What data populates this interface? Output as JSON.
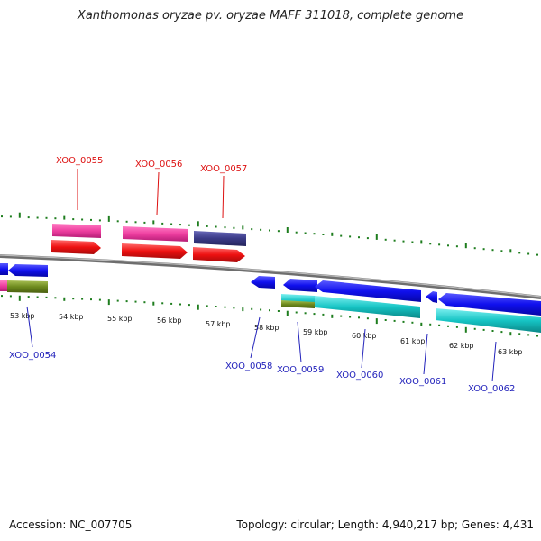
{
  "header": {
    "title": "Xanthomonas oryzae pv. oryzae MAFF 311018, complete genome"
  },
  "footer": {
    "accession": "Accession: NC_007705",
    "stats": "Topology: circular; Length: 4,940,217 bp; Genes: 4,431"
  },
  "scale": {
    "labels": [
      "53 kbp",
      "54 kbp",
      "55 kbp",
      "56 kbp",
      "57 kbp",
      "58 kbp",
      "59 kbp",
      "60 kbp",
      "61 kbp",
      "62 kbp",
      "63 kbp"
    ]
  },
  "genes": {
    "forward_labels": [
      "XOO_0055",
      "XOO_0056",
      "XOO_0057"
    ],
    "reverse_labels": [
      "XOO_0054",
      "XOO_0058",
      "XOO_0059",
      "XOO_0060",
      "XOO_0061",
      "XOO_0062"
    ]
  },
  "colors": {
    "backbone": "#8a8a8a",
    "ticks": "#1e7d1e",
    "pink": "#ee3ea0",
    "red": "#ee1111",
    "purple": "#3a3a86",
    "blue": "#1010ee",
    "olive": "#6e8a1e",
    "cyan": "#16c4c4",
    "label_fwd": "#dd1111",
    "label_rev": "#2222bb"
  }
}
